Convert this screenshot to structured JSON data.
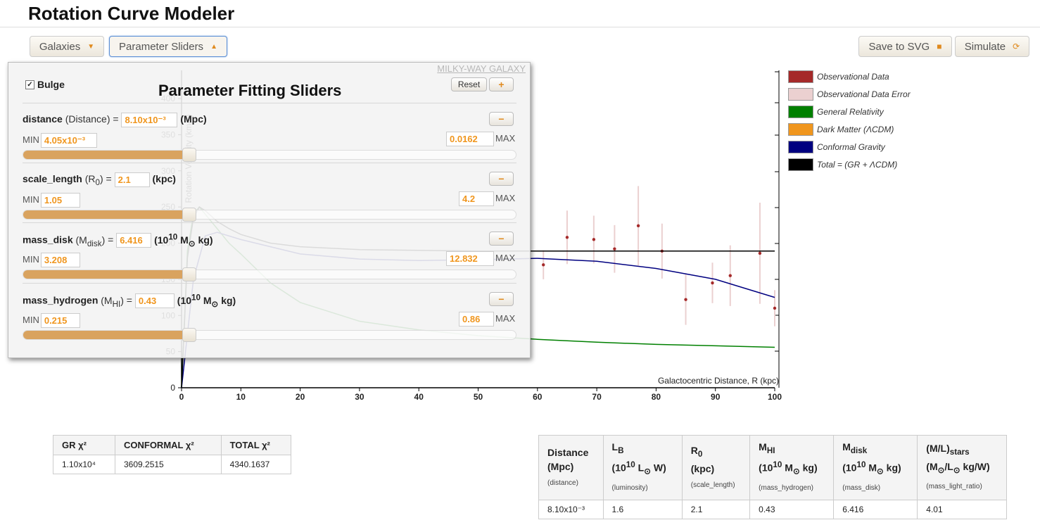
{
  "app": {
    "title": "Rotation Curve Modeler"
  },
  "toolbar": {
    "galaxies_label": "Galaxies",
    "params_label": "Parameter Sliders",
    "save_label": "Save to SVG",
    "simulate_label": "Simulate"
  },
  "icons": {
    "dropdown": "caret-down-icon",
    "dropup": "caret-up-icon",
    "save": "floppy-disk-icon",
    "simulate": "refresh-icon"
  },
  "panel": {
    "galaxy_name": "MILKY-WAY GALAXY",
    "title": "Parameter Fitting Sliders",
    "bulge_label": "Bulge",
    "bulge_checked": true,
    "reset_label": "Reset",
    "plus_label": "+",
    "minus_label": "−",
    "min_label": "MIN",
    "max_label": "MAX",
    "params": [
      {
        "name": "distance",
        "sym": "(Distance)",
        "eq": " =",
        "value": "8.10x10⁻³",
        "unit": "(Mpc)",
        "min": "4.05x10⁻³",
        "max": "0.0162",
        "fraction": 0.0
      },
      {
        "name": "scale_length",
        "sym": "(R",
        "sub": "0",
        "sym_end": ")",
        "eq": " =",
        "value": "2.1",
        "unit": "(kpc)",
        "min": "1.05",
        "max": "4.2",
        "fraction": 0.0
      },
      {
        "name": "mass_disk",
        "sym": "(M",
        "sub": "disk",
        "sym_end": ")",
        "eq": " =",
        "value": "6.416",
        "unit_a": "(10",
        "unit_sup": "10",
        "unit_b": " M",
        "unit_sun": "⊙",
        "unit_c": " kg)",
        "min": "3.208",
        "max": "12.832",
        "fraction": 0.0
      },
      {
        "name": "mass_hydrogen",
        "sym": "(M",
        "sub": "HI",
        "sym_end": ")",
        "eq": " =",
        "value": "0.43",
        "unit_a": "(10",
        "unit_sup": "10",
        "unit_b": " M",
        "unit_sun": "⊙",
        "unit_c": " kg)",
        "min": "0.215",
        "max": "0.86",
        "fraction": 0.0
      }
    ]
  },
  "chart_data": {
    "type": "line",
    "title": "",
    "xlabel": "Galactocentric Distance, R (kpc)",
    "ylabel": "Rotation Velocity (km/s)",
    "xlim": [
      0,
      100
    ],
    "ylim": [
      0,
      400
    ],
    "xticks": [
      0,
      10,
      20,
      30,
      40,
      50,
      60,
      70,
      80,
      90,
      100
    ],
    "yticks": [
      0,
      50,
      100,
      150,
      200,
      250,
      300,
      350,
      400
    ],
    "grid": false,
    "legend": "right",
    "series": [
      {
        "name": "Observational Data",
        "color": "#a52a2a"
      },
      {
        "name": "Observational Data Error",
        "color": "#ebd0d0"
      },
      {
        "name": "General Relativity",
        "color": "#008000"
      },
      {
        "name": "Dark Matter (ΛCDM)",
        "color": "#f0961e"
      },
      {
        "name": "Conformal Gravity",
        "color": "#000080"
      },
      {
        "name": "Total = (GR + ΛCDM)",
        "color": "#000000"
      }
    ],
    "curves": {
      "Total = (GR + ΛCDM)": {
        "x": [
          0,
          1,
          2,
          3,
          4,
          6,
          8,
          10,
          15,
          20,
          30,
          40,
          50,
          60,
          70,
          80,
          90,
          100
        ],
        "y": [
          0,
          180,
          235,
          250,
          245,
          230,
          220,
          212,
          200,
          195,
          191,
          190,
          189,
          189,
          189,
          189,
          189,
          189
        ]
      },
      "Conformal Gravity": {
        "x": [
          0,
          2,
          4,
          6,
          10,
          20,
          30,
          40,
          50,
          60,
          70,
          80,
          90,
          100
        ],
        "y": [
          0,
          150,
          210,
          215,
          205,
          185,
          178,
          176,
          177,
          179,
          175,
          165,
          150,
          125
        ]
      },
      "General Relativity": {
        "x": [
          0,
          1,
          2,
          3,
          4,
          6,
          8,
          10,
          15,
          20,
          30,
          40,
          50,
          60,
          70,
          80,
          90,
          100
        ],
        "y": [
          0,
          190,
          240,
          250,
          240,
          220,
          200,
          185,
          145,
          118,
          92,
          80,
          72,
          67,
          63,
          60,
          58,
          56
        ]
      },
      "observations": {
        "x": [
          61,
          65,
          69.5,
          73,
          77,
          81,
          85,
          89.5,
          92.5,
          97.5,
          100
        ],
        "y": [
          170,
          208,
          205,
          192,
          224,
          189,
          122,
          145,
          155,
          186,
          110
        ],
        "err": [
          20,
          37,
          33,
          33,
          55,
          38,
          35,
          28,
          42,
          70,
          25
        ]
      }
    }
  },
  "chi_table": {
    "headers": [
      "GR χ²",
      "CONFORMAL χ²",
      "TOTAL χ²"
    ],
    "row": [
      "1.10x10⁴",
      "3609.2515",
      "4340.1637"
    ]
  },
  "param_table": {
    "headers": [
      {
        "l1": "Distance",
        "l2": "(Mpc)",
        "sub": "(distance)"
      },
      {
        "l1": "L",
        "l1_sub": "B",
        "l2": "(10",
        "l2_sup": "10",
        "l2_b": " L",
        "l2_sun": "⊙",
        "l2_c": " W)",
        "sub": "(luminosity)"
      },
      {
        "l1": "R",
        "l1_sub": "0",
        "l2": "(kpc)",
        "sub": "(scale_length)"
      },
      {
        "l1": "M",
        "l1_sub": "HI",
        "l2": "(10",
        "l2_sup": "10",
        "l2_b": " M",
        "l2_sun": "⊙",
        "l2_c": " kg)",
        "sub": "(mass_hydrogen)"
      },
      {
        "l1": "M",
        "l1_sub": "disk",
        "l2": "(10",
        "l2_sup": "10",
        "l2_b": " M",
        "l2_sun": "⊙",
        "l2_c": " kg)",
        "sub": "(mass_disk)"
      },
      {
        "l1": "(M/L)",
        "l1_sub": "stars",
        "l2": "(M",
        "l2_sun": "⊙",
        "l2_b": "/L",
        "l2_sun2": "⊙",
        "l2_c": " kg/W)",
        "sub": "(mass_light_ratio)"
      }
    ],
    "row": [
      "8.10x10⁻³",
      "1.6",
      "2.1",
      "0.43",
      "6.416",
      "4.01"
    ]
  }
}
